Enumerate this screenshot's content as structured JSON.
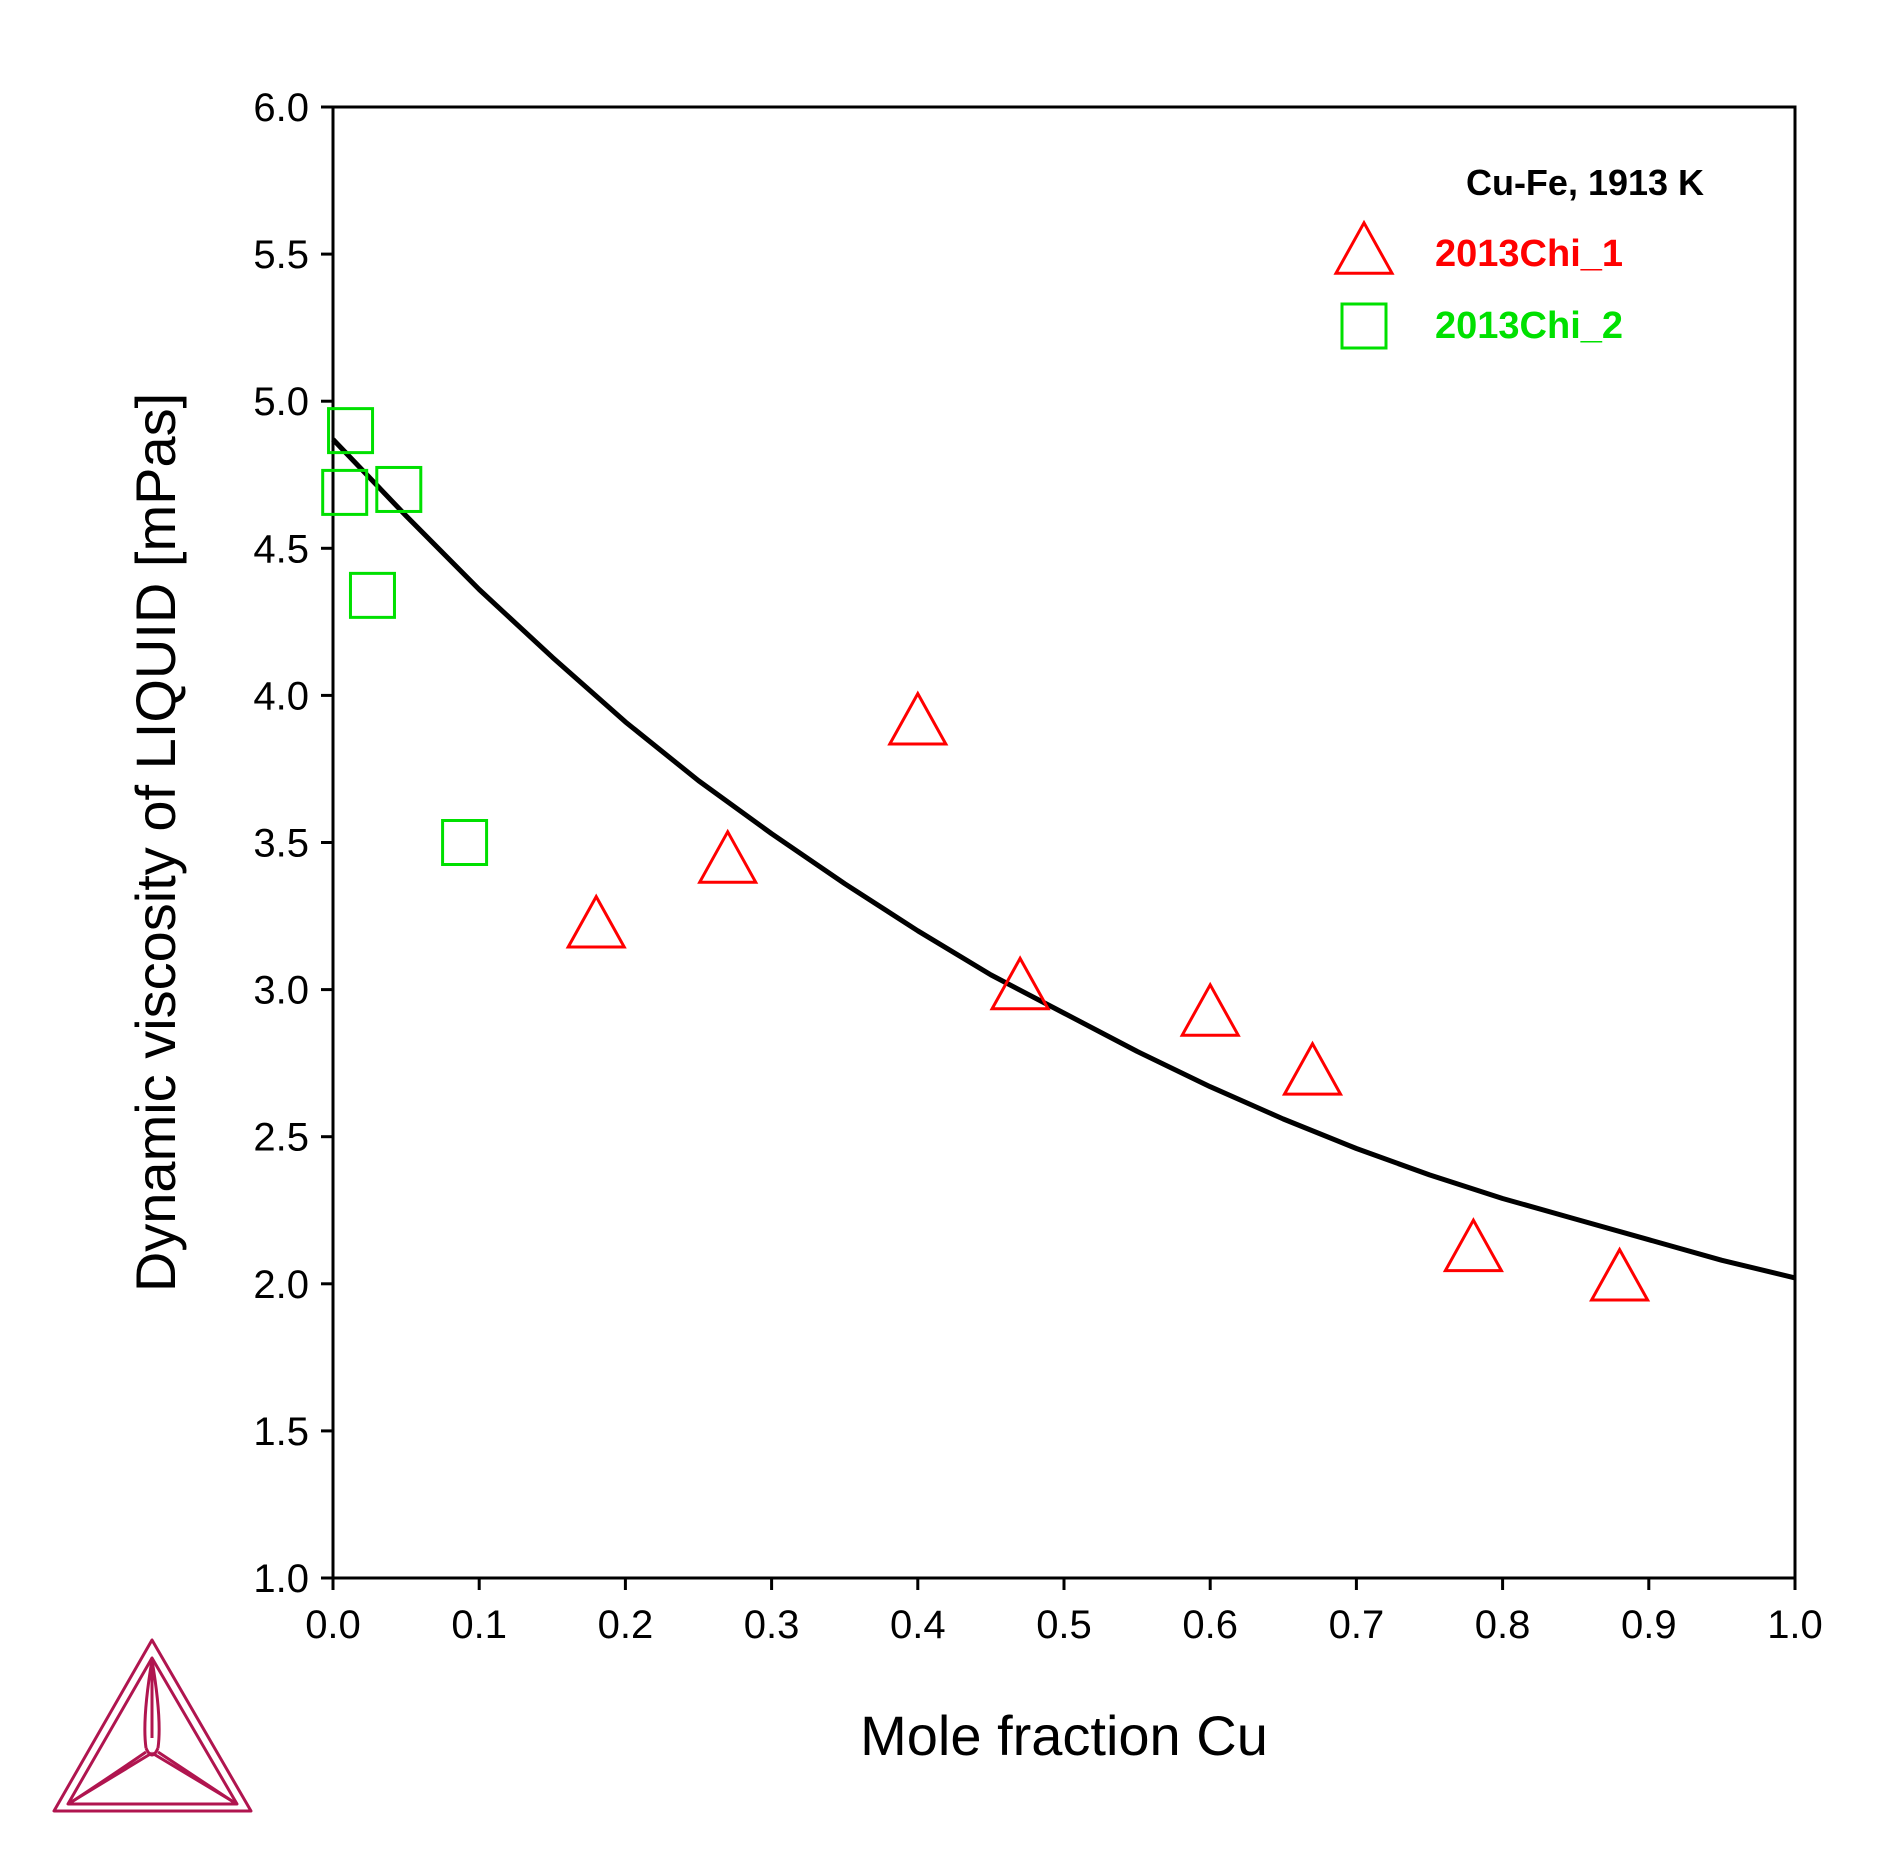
{
  "chart_data": {
    "type": "scatter",
    "xlabel": "Mole fraction Cu",
    "ylabel": "Dynamic viscosity of LIQUID [mPas]",
    "xlim": [
      0.0,
      1.0
    ],
    "ylim": [
      1.0,
      6.0
    ],
    "xticks": [
      "0.0",
      "0.1",
      "0.2",
      "0.3",
      "0.4",
      "0.5",
      "0.6",
      "0.7",
      "0.8",
      "0.9",
      "1.0"
    ],
    "yticks": [
      "1.0",
      "1.5",
      "2.0",
      "2.5",
      "3.0",
      "3.5",
      "4.0",
      "4.5",
      "5.0",
      "5.5",
      "6.0"
    ],
    "grid": false,
    "legend": {
      "title": "Cu-Fe, 1913 K",
      "position": "top-right"
    },
    "series": [
      {
        "name": "",
        "kind": "line",
        "color": "#000000",
        "x": [
          0.0,
          0.05,
          0.1,
          0.15,
          0.2,
          0.25,
          0.3,
          0.35,
          0.4,
          0.45,
          0.5,
          0.55,
          0.6,
          0.65,
          0.7,
          0.75,
          0.8,
          0.85,
          0.9,
          0.95,
          1.0
        ],
        "y": [
          4.87,
          4.61,
          4.36,
          4.13,
          3.91,
          3.71,
          3.53,
          3.36,
          3.2,
          3.05,
          2.92,
          2.79,
          2.67,
          2.56,
          2.46,
          2.37,
          2.29,
          2.22,
          2.15,
          2.08,
          2.02
        ]
      },
      {
        "name": "2013Chi_1",
        "kind": "scatter",
        "marker": "triangle",
        "color": "#ff0000",
        "x": [
          0.18,
          0.27,
          0.4,
          0.47,
          0.6,
          0.67,
          0.78,
          0.88
        ],
        "y": [
          3.21,
          3.43,
          3.9,
          3.0,
          2.91,
          2.71,
          2.11,
          2.01
        ]
      },
      {
        "name": "2013Chi_2",
        "kind": "scatter",
        "marker": "square",
        "color": "#00e000",
        "x": [
          0.012,
          0.008,
          0.045,
          0.027,
          0.09
        ],
        "y": [
          4.9,
          4.69,
          4.7,
          4.34,
          3.5
        ]
      }
    ]
  },
  "logo": {
    "name": "triangle-logo-icon",
    "color": "#b0154f"
  }
}
